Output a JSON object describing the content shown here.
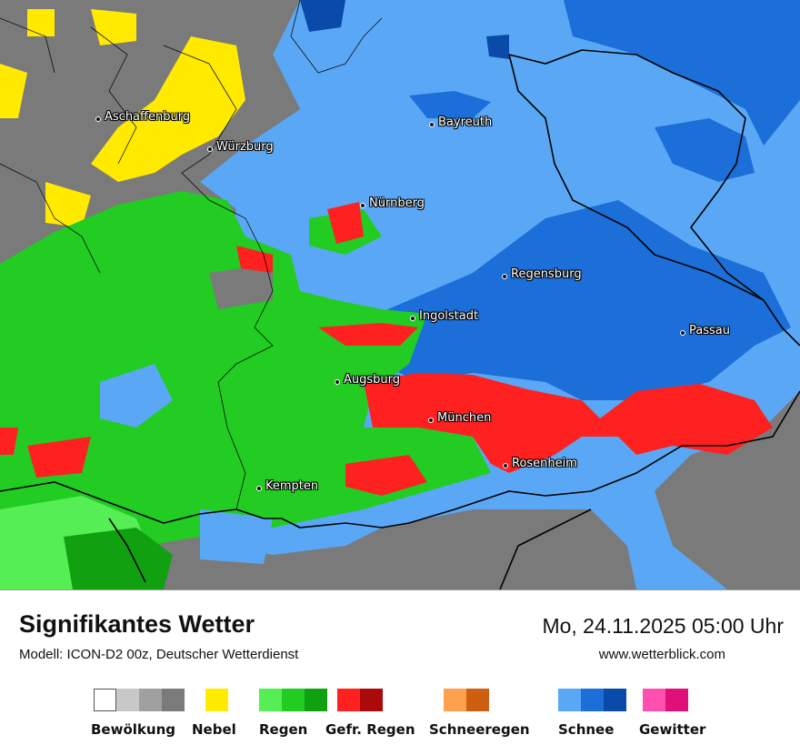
{
  "map": {
    "cities": [
      {
        "name": "Aschaffenburg"
      },
      {
        "name": "Würzburg"
      },
      {
        "name": "Bayreuth"
      },
      {
        "name": "Nürnberg"
      },
      {
        "name": "Regensburg"
      },
      {
        "name": "Ingolstadt"
      },
      {
        "name": "Passau"
      },
      {
        "name": "Augsburg"
      },
      {
        "name": "München"
      },
      {
        "name": "Rosenheim"
      },
      {
        "name": "Kempten"
      }
    ]
  },
  "footer": {
    "title": "Signifikantes Wetter",
    "model": "Modell: ICON-D2 00z, Deutscher Wetterdienst",
    "date": "Mo, 24.11.2025 05:00 Uhr",
    "site": "www.wetterblick.com"
  },
  "legend": [
    {
      "label": "Bewölkung",
      "colors": [
        "#ffffff",
        "#c8c8c8",
        "#a0a0a0",
        "#7a7a7a"
      ]
    },
    {
      "label": "Nebel",
      "colors": [
        "#ffea00"
      ]
    },
    {
      "label": "Regen",
      "colors": [
        "#55ee55",
        "#22cc22",
        "#10a010"
      ]
    },
    {
      "label": "Gefr. Regen",
      "colors": [
        "#ff2020",
        "#aa0a0a"
      ]
    },
    {
      "label": "Schneeregen",
      "colors": [
        "#ffa050",
        "#cc6010"
      ]
    },
    {
      "label": "Schnee",
      "colors": [
        "#5aa8f5",
        "#1c6fd8",
        "#0a4aa8"
      ]
    },
    {
      "label": "Gewitter",
      "colors": [
        "#ff50b0",
        "#e0107a"
      ]
    }
  ]
}
